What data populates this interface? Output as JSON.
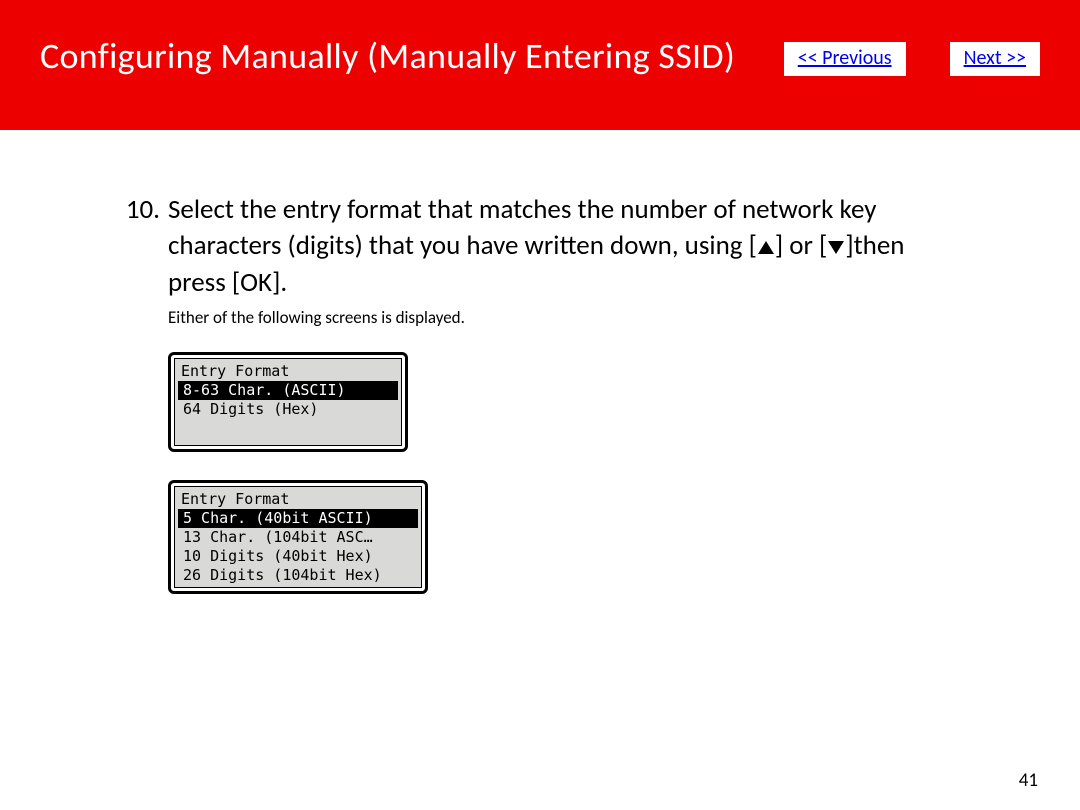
{
  "header": {
    "title": "Configuring Manually (Manually Entering SSID)",
    "prev_label": "<< Previous",
    "next_label": "Next >>",
    "bg_color": "#ed0000",
    "title_color": "#ffffff",
    "nav_btn_bg": "#ffffff",
    "nav_btn_color": "#0000ee"
  },
  "step": {
    "number": "10.",
    "text_before": " Select the entry format that matches the number of network key characters (digits) that you have written down, using [",
    "text_mid": "] or [",
    "text_after": "]then press [OK].",
    "fontsize": 27
  },
  "subtext": "Either of the following screens is displayed.",
  "lcd1": {
    "title": "Entry Format",
    "items": [
      {
        "label": "8-63 Char. (ASCII)",
        "selected": true
      },
      {
        "label": "64 Digits (Hex)",
        "selected": false
      }
    ],
    "height_rows": 4,
    "bg": "#d9d9d7",
    "selected_bg": "#000000",
    "selected_fg": "#ffffff",
    "font": "monospace"
  },
  "lcd2": {
    "title": "Entry Format",
    "items": [
      {
        "label": "5 Char. (40bit ASCII)",
        "selected": true
      },
      {
        "label": "13 Char. (104bit ASC…",
        "selected": false
      },
      {
        "label": "10 Digits (40bit Hex)",
        "selected": false
      },
      {
        "label": "26 Digits (104bit Hex)",
        "selected": false
      }
    ],
    "bg": "#d9d9d7",
    "selected_bg": "#000000",
    "selected_fg": "#ffffff",
    "font": "monospace"
  },
  "page_number": "41"
}
